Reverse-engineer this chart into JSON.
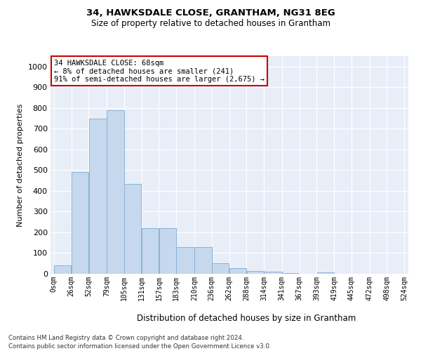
{
  "title_line1": "34, HAWKSDALE CLOSE, GRANTHAM, NG31 8EG",
  "title_line2": "Size of property relative to detached houses in Grantham",
  "xlabel": "Distribution of detached houses by size in Grantham",
  "ylabel": "Number of detached properties",
  "bar_color": "#c5d8ed",
  "bar_edge_color": "#89b4d4",
  "background_color": "#e8eef8",
  "fig_background": "#ffffff",
  "annotation_text": "34 HAWKSDALE CLOSE: 68sqm\n← 8% of detached houses are smaller (241)\n91% of semi-detached houses are larger (2,675) →",
  "annotation_box_color": "#ffffff",
  "annotation_box_edge": "#cc0000",
  "footnote1": "Contains HM Land Registry data © Crown copyright and database right 2024.",
  "footnote2": "Contains public sector information licensed under the Open Government Licence v3.0.",
  "grid_color": "#ffffff",
  "x_vals": [
    0,
    26,
    52,
    79,
    105,
    131,
    157,
    183,
    210,
    236,
    262,
    288,
    314,
    341,
    367,
    393,
    419,
    445,
    472,
    498,
    524
  ],
  "bin_heights": [
    42,
    490,
    750,
    790,
    435,
    220,
    220,
    128,
    128,
    52,
    27,
    13,
    10,
    5,
    0,
    8,
    0,
    0,
    0,
    0
  ],
  "categories": [
    "0sqm",
    "26sqm",
    "52sqm",
    "79sqm",
    "105sqm",
    "131sqm",
    "157sqm",
    "183sqm",
    "210sqm",
    "236sqm",
    "262sqm",
    "288sqm",
    "314sqm",
    "341sqm",
    "367sqm",
    "393sqm",
    "419sqm",
    "445sqm",
    "472sqm",
    "498sqm",
    "524sqm"
  ],
  "ylim": [
    0,
    1050
  ],
  "yticks": [
    0,
    100,
    200,
    300,
    400,
    500,
    600,
    700,
    800,
    900,
    1000
  ]
}
